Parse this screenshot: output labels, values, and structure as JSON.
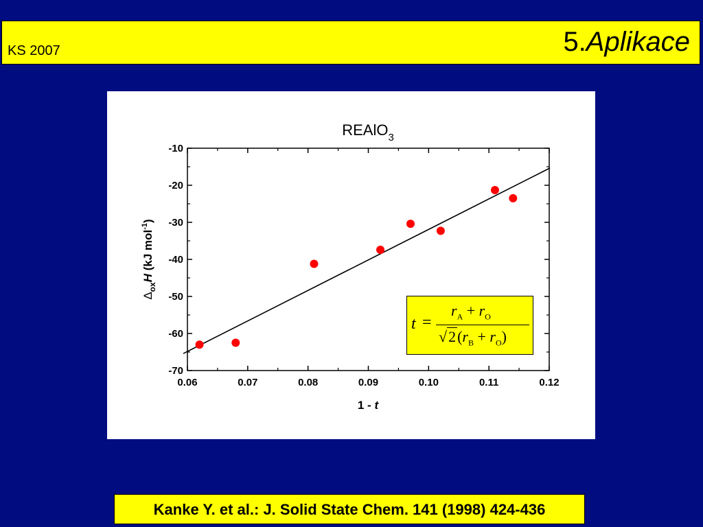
{
  "header": {
    "left_label": "KS 2007",
    "title_number": "5.",
    "title_text": "Aplikace"
  },
  "footer": {
    "citation": "Kanke Y. et al.: J. Solid State Chem. 141 (1998) 424-436"
  },
  "formula": {
    "lhs": "t",
    "eq": "=",
    "num_r1": "r",
    "num_s1": "A",
    "num_op": " + ",
    "num_r2": "r",
    "num_s2": "O",
    "den_two": "2",
    "den_open": "(",
    "den_r1": "r",
    "den_s1": "B",
    "den_op": " + ",
    "den_r2": "r",
    "den_s2": "O",
    "den_close": ")"
  },
  "chart_data": {
    "type": "scatter",
    "title_main": "REAlO",
    "title_sub": "3",
    "xlabel_main": "1 - ",
    "xlabel_italic": "t",
    "ylabel_delta": "Δ",
    "ylabel_sub": "ox",
    "ylabel_h": "H",
    "ylabel_units": " (kJ mol",
    "ylabel_sup": "-1",
    "ylabel_close": ")",
    "xlim": [
      0.06,
      0.12
    ],
    "ylim": [
      -70,
      -10
    ],
    "xticks": [
      0.06,
      0.07,
      0.08,
      0.09,
      0.1,
      0.11,
      0.12
    ],
    "xtick_labels": [
      "0.06",
      "0.07",
      "0.08",
      "0.09",
      "0.10",
      "0.11",
      "0.12"
    ],
    "yticks": [
      -10,
      -20,
      -30,
      -40,
      -50,
      -60,
      -70
    ],
    "ytick_labels": [
      "-10",
      "-20",
      "-30",
      "-40",
      "-50",
      "-60",
      "-70"
    ],
    "points": [
      {
        "x": 0.062,
        "y": -63.0
      },
      {
        "x": 0.068,
        "y": -62.5
      },
      {
        "x": 0.081,
        "y": -41.2
      },
      {
        "x": 0.092,
        "y": -37.4
      },
      {
        "x": 0.097,
        "y": -30.4
      },
      {
        "x": 0.102,
        "y": -32.3
      },
      {
        "x": 0.111,
        "y": -21.3
      },
      {
        "x": 0.114,
        "y": -23.5
      }
    ],
    "fit_line": [
      {
        "x": 0.06,
        "y": -64.5
      },
      {
        "x": 0.12,
        "y": -15.5
      }
    ],
    "point_color": "#ff0000",
    "line_color": "#000000",
    "grid": false
  }
}
